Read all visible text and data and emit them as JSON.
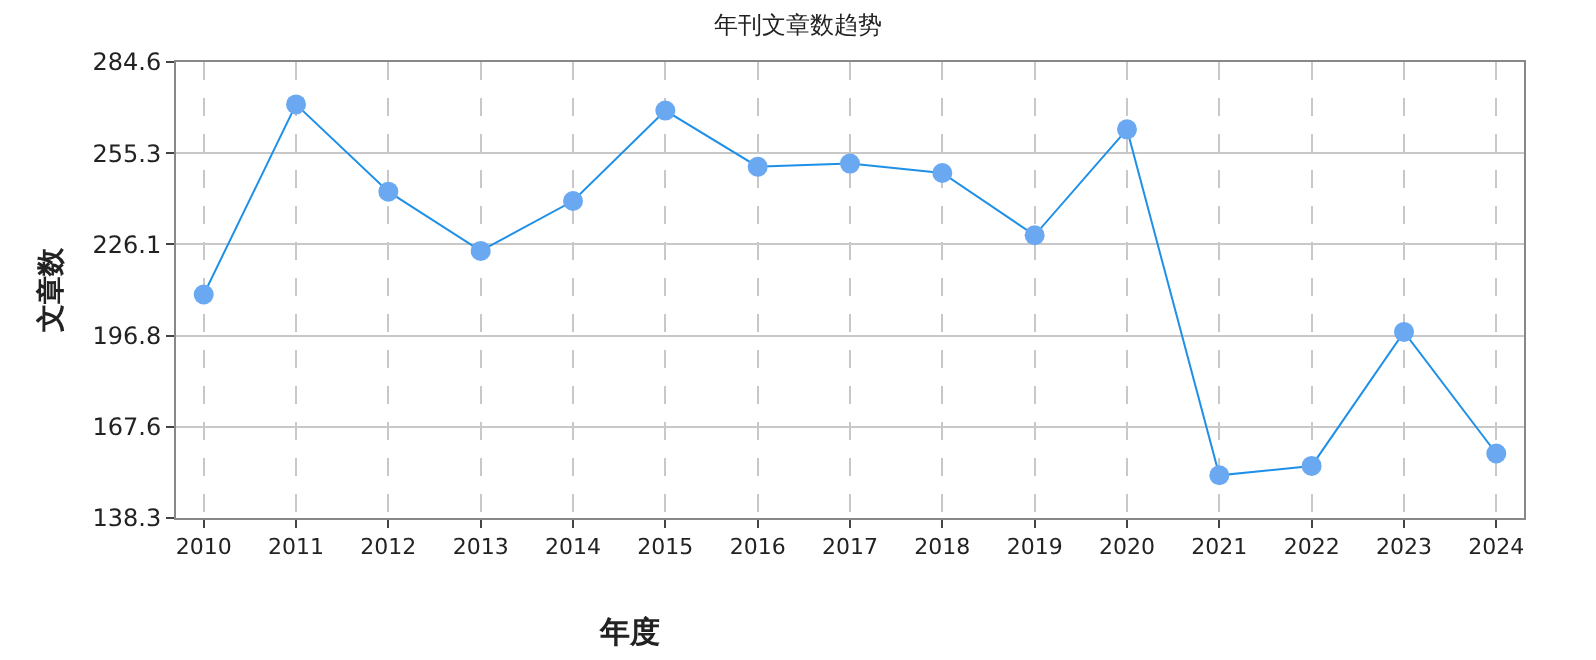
{
  "chart_data": {
    "type": "line",
    "title": "年刊文章数趋势",
    "xlabel": "年度",
    "ylabel": "文章数",
    "categories": [
      "2010",
      "2011",
      "2012",
      "2013",
      "2014",
      "2015",
      "2016",
      "2017",
      "2018",
      "2019",
      "2020",
      "2021",
      "2022",
      "2023",
      "2024"
    ],
    "series": [
      {
        "color": "#1e90e8",
        "values": [
          210,
          271,
          243,
          224,
          240,
          269,
          251,
          252,
          249,
          229,
          263,
          152,
          155,
          198,
          159
        ]
      }
    ],
    "ylim": [
      138.3,
      284.6
    ],
    "yticks": [
      138.3,
      167.6,
      196.8,
      226.1,
      255.3,
      284.6
    ],
    "grid": true,
    "marker": "circle",
    "line_style": "solid"
  }
}
